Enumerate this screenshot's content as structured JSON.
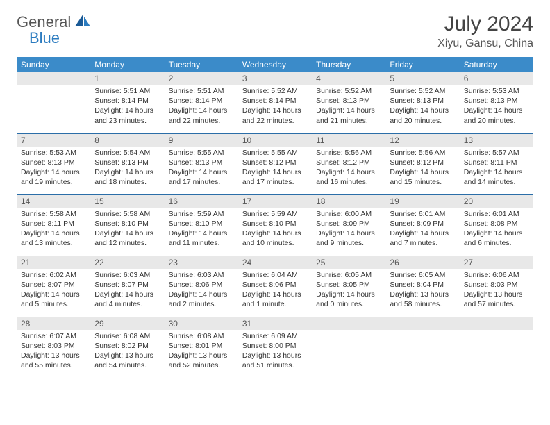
{
  "logo": {
    "general": "General",
    "blue": "Blue"
  },
  "title": "July 2024",
  "location": "Xiyu, Gansu, China",
  "colors": {
    "header_bg": "#3b8bc9",
    "header_text": "#ffffff",
    "daynum_bg": "#e8e8e8",
    "border": "#2b6ea8",
    "logo_blue": "#2b7bbf"
  },
  "weekdays": [
    "Sunday",
    "Monday",
    "Tuesday",
    "Wednesday",
    "Thursday",
    "Friday",
    "Saturday"
  ],
  "start_offset": 1,
  "days": [
    {
      "n": 1,
      "sr": "5:51 AM",
      "ss": "8:14 PM",
      "dl": "14 hours and 23 minutes."
    },
    {
      "n": 2,
      "sr": "5:51 AM",
      "ss": "8:14 PM",
      "dl": "14 hours and 22 minutes."
    },
    {
      "n": 3,
      "sr": "5:52 AM",
      "ss": "8:14 PM",
      "dl": "14 hours and 22 minutes."
    },
    {
      "n": 4,
      "sr": "5:52 AM",
      "ss": "8:13 PM",
      "dl": "14 hours and 21 minutes."
    },
    {
      "n": 5,
      "sr": "5:52 AM",
      "ss": "8:13 PM",
      "dl": "14 hours and 20 minutes."
    },
    {
      "n": 6,
      "sr": "5:53 AM",
      "ss": "8:13 PM",
      "dl": "14 hours and 20 minutes."
    },
    {
      "n": 7,
      "sr": "5:53 AM",
      "ss": "8:13 PM",
      "dl": "14 hours and 19 minutes."
    },
    {
      "n": 8,
      "sr": "5:54 AM",
      "ss": "8:13 PM",
      "dl": "14 hours and 18 minutes."
    },
    {
      "n": 9,
      "sr": "5:55 AM",
      "ss": "8:13 PM",
      "dl": "14 hours and 17 minutes."
    },
    {
      "n": 10,
      "sr": "5:55 AM",
      "ss": "8:12 PM",
      "dl": "14 hours and 17 minutes."
    },
    {
      "n": 11,
      "sr": "5:56 AM",
      "ss": "8:12 PM",
      "dl": "14 hours and 16 minutes."
    },
    {
      "n": 12,
      "sr": "5:56 AM",
      "ss": "8:12 PM",
      "dl": "14 hours and 15 minutes."
    },
    {
      "n": 13,
      "sr": "5:57 AM",
      "ss": "8:11 PM",
      "dl": "14 hours and 14 minutes."
    },
    {
      "n": 14,
      "sr": "5:58 AM",
      "ss": "8:11 PM",
      "dl": "14 hours and 13 minutes."
    },
    {
      "n": 15,
      "sr": "5:58 AM",
      "ss": "8:10 PM",
      "dl": "14 hours and 12 minutes."
    },
    {
      "n": 16,
      "sr": "5:59 AM",
      "ss": "8:10 PM",
      "dl": "14 hours and 11 minutes."
    },
    {
      "n": 17,
      "sr": "5:59 AM",
      "ss": "8:10 PM",
      "dl": "14 hours and 10 minutes."
    },
    {
      "n": 18,
      "sr": "6:00 AM",
      "ss": "8:09 PM",
      "dl": "14 hours and 9 minutes."
    },
    {
      "n": 19,
      "sr": "6:01 AM",
      "ss": "8:09 PM",
      "dl": "14 hours and 7 minutes."
    },
    {
      "n": 20,
      "sr": "6:01 AM",
      "ss": "8:08 PM",
      "dl": "14 hours and 6 minutes."
    },
    {
      "n": 21,
      "sr": "6:02 AM",
      "ss": "8:07 PM",
      "dl": "14 hours and 5 minutes."
    },
    {
      "n": 22,
      "sr": "6:03 AM",
      "ss": "8:07 PM",
      "dl": "14 hours and 4 minutes."
    },
    {
      "n": 23,
      "sr": "6:03 AM",
      "ss": "8:06 PM",
      "dl": "14 hours and 2 minutes."
    },
    {
      "n": 24,
      "sr": "6:04 AM",
      "ss": "8:06 PM",
      "dl": "14 hours and 1 minute."
    },
    {
      "n": 25,
      "sr": "6:05 AM",
      "ss": "8:05 PM",
      "dl": "14 hours and 0 minutes."
    },
    {
      "n": 26,
      "sr": "6:05 AM",
      "ss": "8:04 PM",
      "dl": "13 hours and 58 minutes."
    },
    {
      "n": 27,
      "sr": "6:06 AM",
      "ss": "8:03 PM",
      "dl": "13 hours and 57 minutes."
    },
    {
      "n": 28,
      "sr": "6:07 AM",
      "ss": "8:03 PM",
      "dl": "13 hours and 55 minutes."
    },
    {
      "n": 29,
      "sr": "6:08 AM",
      "ss": "8:02 PM",
      "dl": "13 hours and 54 minutes."
    },
    {
      "n": 30,
      "sr": "6:08 AM",
      "ss": "8:01 PM",
      "dl": "13 hours and 52 minutes."
    },
    {
      "n": 31,
      "sr": "6:09 AM",
      "ss": "8:00 PM",
      "dl": "13 hours and 51 minutes."
    }
  ],
  "labels": {
    "sunrise": "Sunrise:",
    "sunset": "Sunset:",
    "daylight": "Daylight:"
  }
}
